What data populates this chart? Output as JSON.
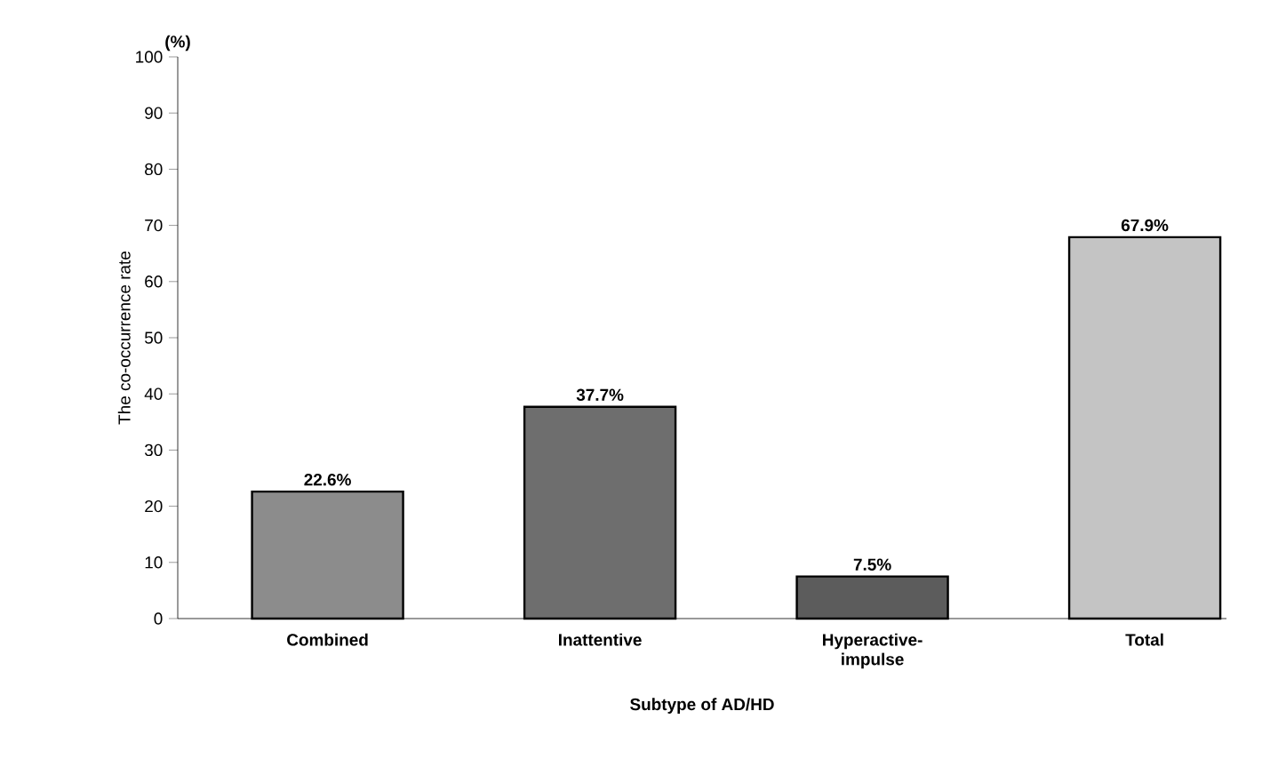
{
  "chart_data": {
    "type": "bar",
    "categories": [
      "Combined",
      "Inattentive",
      "Hyperactive-impulse",
      "Total"
    ],
    "values": [
      22.6,
      37.7,
      7.5,
      67.9
    ],
    "colors": [
      "#8c8c8c",
      "#6e6e6e",
      "#5c5c5c",
      "#c4c4c4"
    ],
    "value_labels": [
      "22.6%",
      "37.7%",
      "7.5%",
      "67.9%"
    ],
    "xlabel": "Subtype of AD/HD",
    "ylabel": "The co-occurrence rate",
    "annotations": [
      "(%)"
    ],
    "ylim": [
      0,
      100
    ],
    "yticks": [
      0,
      10,
      20,
      30,
      40,
      50,
      60,
      70,
      80,
      90,
      100
    ],
    "grid": false
  }
}
